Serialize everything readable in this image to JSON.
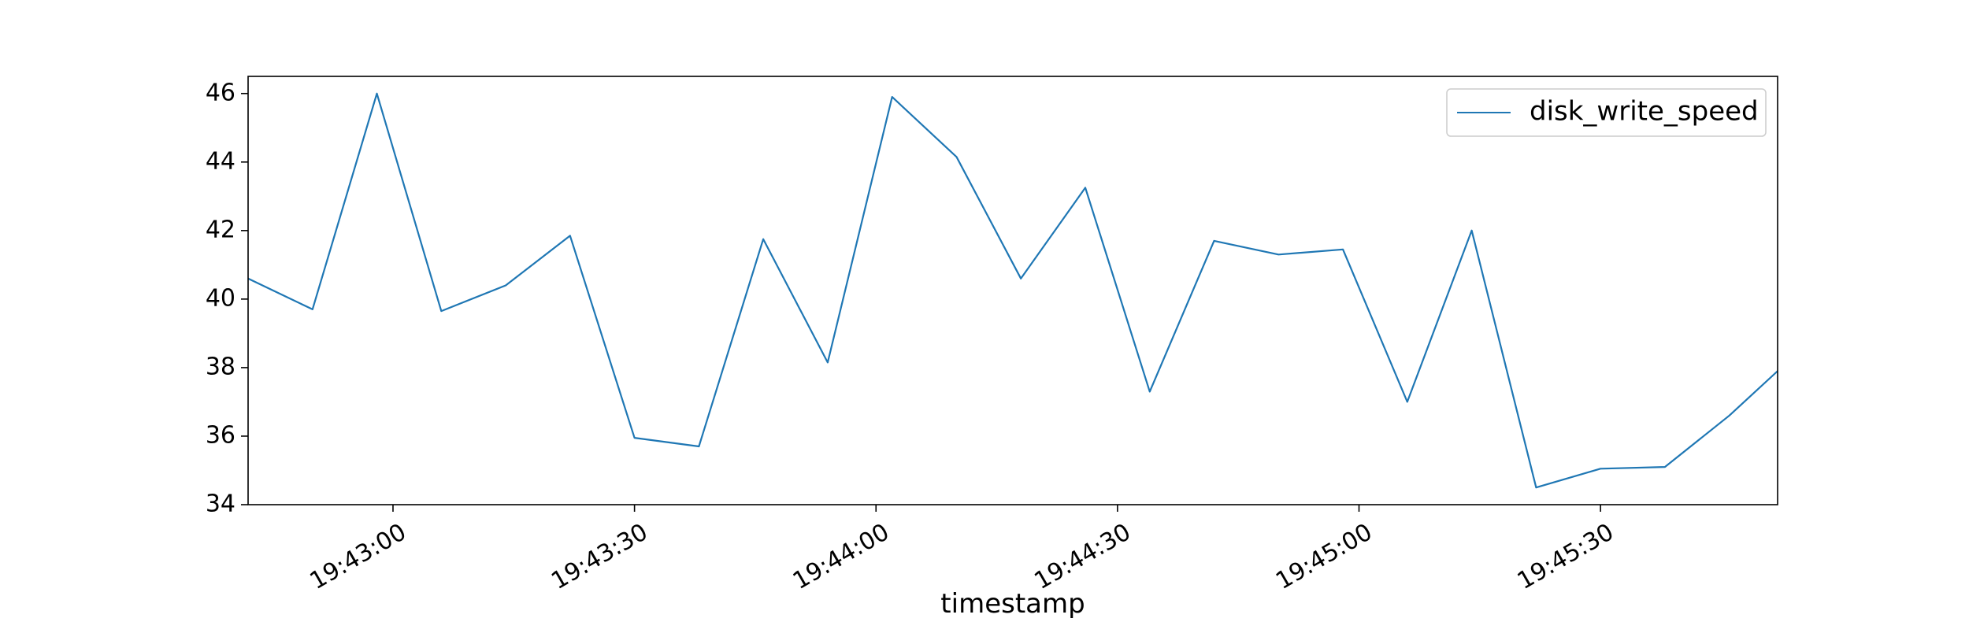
{
  "chart_data": {
    "type": "line",
    "xlabel": "timestamp",
    "ylabel": "",
    "xlim": [
      "19:42:42",
      "19:45:52"
    ],
    "ylim": [
      34,
      46.5
    ],
    "x_ticks": [
      "19:43:00",
      "19:43:30",
      "19:44:00",
      "19:44:30",
      "19:45:00",
      "19:45:30"
    ],
    "y_ticks": [
      34,
      36,
      38,
      40,
      42,
      44,
      46
    ],
    "grid": false,
    "legend_position": "top-right",
    "series": [
      {
        "name": "disk_write_speed",
        "color": "#1f77b4",
        "x": [
          "19:42:42",
          "19:42:50",
          "19:42:58",
          "19:43:06",
          "19:43:14",
          "19:43:22",
          "19:43:30",
          "19:43:38",
          "19:43:46",
          "19:43:54",
          "19:44:02",
          "19:44:10",
          "19:44:18",
          "19:44:26",
          "19:44:34",
          "19:44:42",
          "19:44:50",
          "19:44:58",
          "19:45:06",
          "19:45:14",
          "19:45:22",
          "19:45:30",
          "19:45:38",
          "19:45:46",
          "19:45:52"
        ],
        "values": [
          40.6,
          39.7,
          46.0,
          39.65,
          40.4,
          41.85,
          35.95,
          35.7,
          41.75,
          38.15,
          45.9,
          44.15,
          40.6,
          43.25,
          37.3,
          41.7,
          41.3,
          41.45,
          37.0,
          42.0,
          34.5,
          35.05,
          35.1,
          36.6,
          37.9
        ]
      }
    ]
  }
}
